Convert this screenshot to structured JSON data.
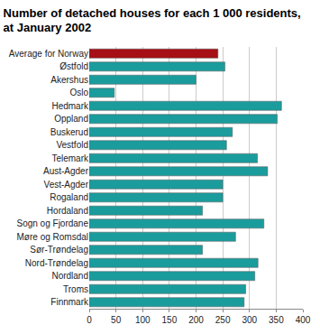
{
  "chart_data": {
    "type": "bar",
    "orientation": "horizontal",
    "title": "Number of detached houses for each 1 000 residents,\nat January 2002",
    "categories": [
      "Average for Norway",
      "Østfold",
      "Akershus",
      "Oslo",
      "Hedmark",
      "Oppland",
      "Buskerud",
      "Vestfold",
      "Telemark",
      "Aust-Agder",
      "Vest-Agder",
      "Rogaland",
      "Hordaland",
      "Sogn og Fjordane",
      "Møre og Romsdal",
      "Sør-Trøndelag",
      "Nord-Trøndelag",
      "Nordland",
      "Troms",
      "Finnmark"
    ],
    "values": [
      241,
      254,
      200,
      47,
      360,
      352,
      268,
      257,
      315,
      334,
      250,
      250,
      212,
      327,
      274,
      212,
      316,
      310,
      293,
      290
    ],
    "colors": [
      "#a50f15",
      "#1b9c9c",
      "#1b9c9c",
      "#1b9c9c",
      "#1b9c9c",
      "#1b9c9c",
      "#1b9c9c",
      "#1b9c9c",
      "#1b9c9c",
      "#1b9c9c",
      "#1b9c9c",
      "#1b9c9c",
      "#1b9c9c",
      "#1b9c9c",
      "#1b9c9c",
      "#1b9c9c",
      "#1b9c9c",
      "#1b9c9c",
      "#1b9c9c",
      "#1b9c9c"
    ],
    "xlim": [
      0,
      400
    ],
    "xticks": [
      0,
      50,
      100,
      150,
      200,
      250,
      300,
      350,
      400
    ],
    "grid": true
  }
}
